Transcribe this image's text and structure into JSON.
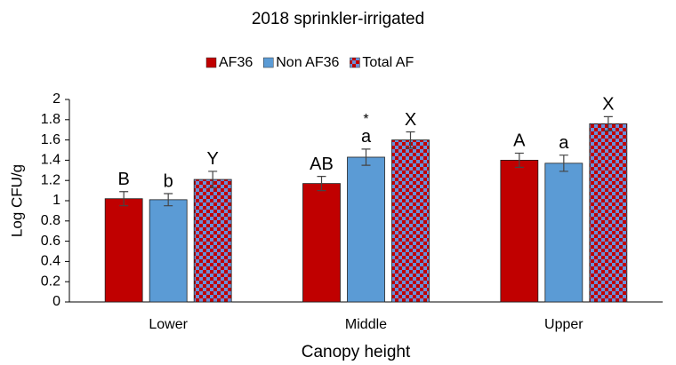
{
  "chart_data": {
    "type": "bar",
    "title": "2018 sprinkler-irrigated",
    "xlabel": "Canopy height",
    "ylabel": "Log CFU/g",
    "categories": [
      "Lower",
      "Middle",
      "Upper"
    ],
    "series": [
      {
        "name": "AF36",
        "color": "#c00000",
        "values": [
          1.02,
          1.17,
          1.4
        ],
        "errors": [
          0.07,
          0.07,
          0.07
        ],
        "letters": [
          "B",
          "AB",
          "A"
        ]
      },
      {
        "name": "Non AF36",
        "color": "#5b9bd5",
        "values": [
          1.01,
          1.43,
          1.37
        ],
        "errors": [
          0.06,
          0.08,
          0.08
        ],
        "letters": [
          "b",
          "a",
          "a"
        ],
        "marks": [
          null,
          "*",
          null
        ]
      },
      {
        "name": "Total AF",
        "color": "#c00000",
        "pattern": "checker",
        "pattern_color": "#6a8fd8",
        "values": [
          1.21,
          1.6,
          1.76
        ],
        "errors": [
          0.08,
          0.08,
          0.07
        ],
        "letters": [
          "Y",
          "X",
          "X"
        ]
      }
    ],
    "ylim": [
      0,
      2
    ],
    "yticks": [
      0,
      0.2,
      0.4,
      0.6,
      0.8,
      1,
      1.2,
      1.4,
      1.6,
      1.8,
      2
    ],
    "grid": false,
    "legend": "top"
  }
}
